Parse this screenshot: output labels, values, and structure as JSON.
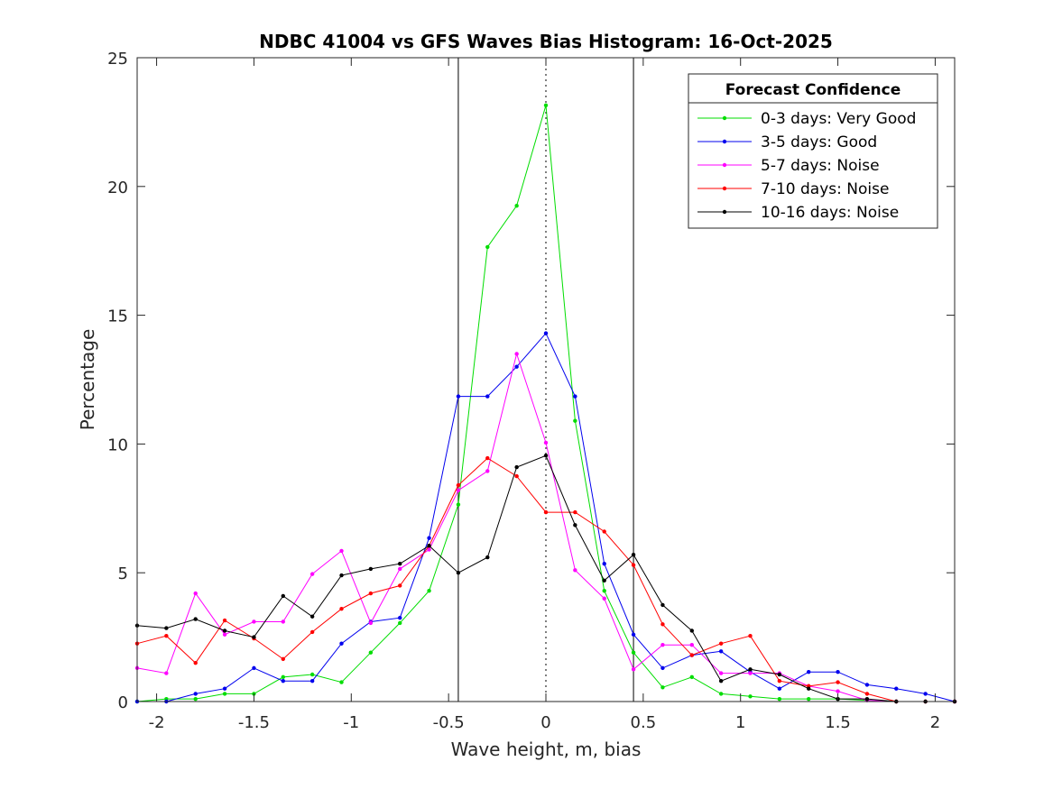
{
  "chart_data": {
    "type": "line",
    "title": "NDBC 41004 vs GFS Waves Bias Histogram: 16-Oct-2025",
    "xlabel": "Wave height, m, bias",
    "ylabel": "Percentage",
    "xlim": [
      -2.1,
      2.1
    ],
    "ylim": [
      0,
      25
    ],
    "xticks": [
      -2,
      -1.5,
      -1,
      -0.5,
      0,
      0.5,
      1,
      1.5,
      2
    ],
    "xtick_labels": [
      "-2",
      "-1.5",
      "-1",
      "-0.5",
      "0",
      "0.5",
      "1",
      "1.5",
      "2"
    ],
    "yticks": [
      0,
      5,
      10,
      15,
      20,
      25
    ],
    "ytick_labels": [
      "0",
      "5",
      "10",
      "15",
      "20",
      "25"
    ],
    "reference_lines": [
      {
        "x": -0.45,
        "style": "solid"
      },
      {
        "x": 0,
        "style": "dotted"
      },
      {
        "x": 0.45,
        "style": "solid"
      }
    ],
    "grid": false,
    "legend": {
      "title": "Forecast Confidence",
      "position": "top-right"
    },
    "x": [
      -2.1,
      -1.95,
      -1.8,
      -1.65,
      -1.5,
      -1.35,
      -1.2,
      -1.05,
      -0.9,
      -0.75,
      -0.6,
      -0.45,
      -0.3,
      -0.15,
      0,
      0.15,
      0.3,
      0.45,
      0.6,
      0.75,
      0.9,
      1.05,
      1.2,
      1.35,
      1.5,
      1.65,
      1.8,
      1.95,
      2.1
    ],
    "series": [
      {
        "name": "0-3 days: Very Good",
        "color": "#00dd00",
        "values": [
          0,
          0.1,
          0.1,
          0.3,
          0.3,
          0.95,
          1.05,
          0.75,
          1.9,
          3.05,
          4.3,
          7.65,
          17.65,
          19.25,
          23.15,
          10.9,
          4.3,
          1.9,
          0.55,
          0.95,
          0.3,
          0.2,
          0.1,
          0.1,
          0.1,
          0.05,
          0,
          0,
          0
        ]
      },
      {
        "name": "3-5 days: Good",
        "color": "#0000ee",
        "values": [
          0,
          0,
          0.3,
          0.5,
          1.3,
          0.8,
          0.8,
          2.25,
          3.1,
          3.25,
          6.35,
          11.85,
          11.85,
          13.0,
          14.3,
          11.85,
          5.35,
          2.6,
          1.3,
          1.8,
          1.95,
          1.15,
          0.5,
          1.15,
          1.15,
          0.65,
          0.5,
          0.3,
          0
        ]
      },
      {
        "name": "5-7 days: Noise",
        "color": "#ff00ff",
        "values": [
          1.3,
          1.1,
          4.2,
          2.6,
          3.1,
          3.1,
          4.95,
          5.85,
          3.05,
          5.15,
          5.9,
          8.2,
          8.95,
          13.5,
          10.05,
          5.1,
          4.0,
          1.25,
          2.2,
          2.2,
          1.1,
          1.1,
          1.1,
          0.6,
          0.4,
          0.05,
          0,
          0,
          0
        ]
      },
      {
        "name": "7-10 days: Noise",
        "color": "#ff0000",
        "values": [
          2.25,
          2.55,
          1.5,
          3.15,
          2.45,
          1.65,
          2.7,
          3.6,
          4.2,
          4.5,
          6.05,
          8.4,
          9.45,
          8.75,
          7.35,
          7.35,
          6.6,
          5.3,
          3.0,
          1.8,
          2.25,
          2.55,
          0.8,
          0.6,
          0.75,
          0.3,
          0,
          0,
          0
        ]
      },
      {
        "name": "10-16 days: Noise",
        "color": "#000000",
        "values": [
          2.95,
          2.85,
          3.2,
          2.75,
          2.5,
          4.1,
          3.3,
          4.9,
          5.15,
          5.35,
          6.05,
          5.0,
          5.6,
          9.1,
          9.55,
          6.85,
          4.7,
          5.7,
          3.75,
          2.75,
          0.8,
          1.25,
          1.05,
          0.5,
          0.1,
          0.1,
          0,
          0,
          0
        ]
      }
    ]
  }
}
